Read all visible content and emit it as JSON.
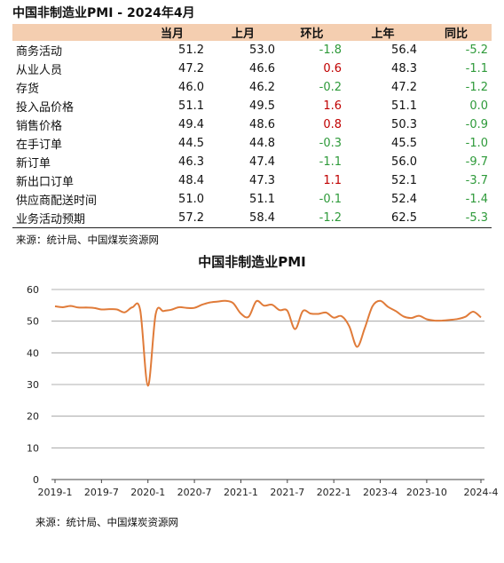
{
  "header": {
    "title": "中国非制造业PMI - 2024年4月"
  },
  "table": {
    "columns": [
      "",
      "当月",
      "上月",
      "环比",
      "上年",
      "同比"
    ],
    "rows": [
      {
        "name": "商务活动",
        "cur": "51.2",
        "prev": "53.0",
        "mom": "-1.8",
        "lastyear": "56.4",
        "yoy": "-5.2"
      },
      {
        "name": "从业人员",
        "cur": "47.2",
        "prev": "46.6",
        "mom": "0.6",
        "lastyear": "48.3",
        "yoy": "-1.1"
      },
      {
        "name": "存货",
        "cur": "46.0",
        "prev": "46.2",
        "mom": "-0.2",
        "lastyear": "47.2",
        "yoy": "-1.2"
      },
      {
        "name": "投入品价格",
        "cur": "51.1",
        "prev": "49.5",
        "mom": "1.6",
        "lastyear": "51.1",
        "yoy": "0.0"
      },
      {
        "name": "销售价格",
        "cur": "49.4",
        "prev": "48.6",
        "mom": "0.8",
        "lastyear": "50.3",
        "yoy": "-0.9"
      },
      {
        "name": "在手订单",
        "cur": "44.5",
        "prev": "44.8",
        "mom": "-0.3",
        "lastyear": "45.5",
        "yoy": "-1.0"
      },
      {
        "name": "新订单",
        "cur": "46.3",
        "prev": "47.4",
        "mom": "-1.1",
        "lastyear": "56.0",
        "yoy": "-9.7"
      },
      {
        "name": "新出口订单",
        "cur": "48.4",
        "prev": "47.3",
        "mom": "1.1",
        "lastyear": "52.1",
        "yoy": "-3.7"
      },
      {
        "name": "供应商配送时间",
        "cur": "51.0",
        "prev": "51.1",
        "mom": "-0.1",
        "lastyear": "52.4",
        "yoy": "-1.4"
      },
      {
        "name": "业务活动预期",
        "cur": "57.2",
        "prev": "58.4",
        "mom": "-1.2",
        "lastyear": "62.5",
        "yoy": "-5.3"
      }
    ],
    "source": "来源：统计局、中国煤炭资源网"
  },
  "colors": {
    "line": "#e07b39",
    "header_bg": "#f4ceb0",
    "positive": "#c00000",
    "negative": "#2e9a3a",
    "grid": "#999999"
  },
  "chart_data": {
    "type": "line",
    "title": "中国非制造业PMI",
    "xlabel": "",
    "ylabel": "",
    "ylim": [
      0,
      60
    ],
    "yticks": [
      0,
      10,
      20,
      30,
      40,
      50,
      60
    ],
    "xtick_labels": [
      "2019-1",
      "2019-7",
      "2020-1",
      "2020-7",
      "2021-1",
      "2021-7",
      "2022-1",
      "2023-4",
      "2023-10",
      "2024-4"
    ],
    "grid": true,
    "series": [
      {
        "values": [
          54.7,
          54.4,
          54.8,
          54.3,
          54.3,
          54.2,
          53.7,
          53.8,
          53.7,
          52.8,
          54.4,
          53.5,
          29.6,
          52.3,
          53.2,
          53.6,
          54.4,
          54.2,
          54.2,
          55.2,
          55.9,
          56.2,
          56.4,
          55.7,
          52.4,
          51.4,
          56.3,
          54.9,
          55.2,
          53.5,
          53.3,
          47.5,
          53.2,
          52.4,
          52.3,
          52.7,
          51.1,
          51.6,
          48.4,
          41.9,
          47.8,
          54.7,
          56.4,
          54.5,
          53.2,
          51.5,
          51.0,
          51.7,
          50.6,
          50.2,
          50.2,
          50.4,
          50.7,
          51.4,
          53.0,
          51.2
        ]
      }
    ],
    "source": "来源：统计局、中国煤炭资源网"
  }
}
